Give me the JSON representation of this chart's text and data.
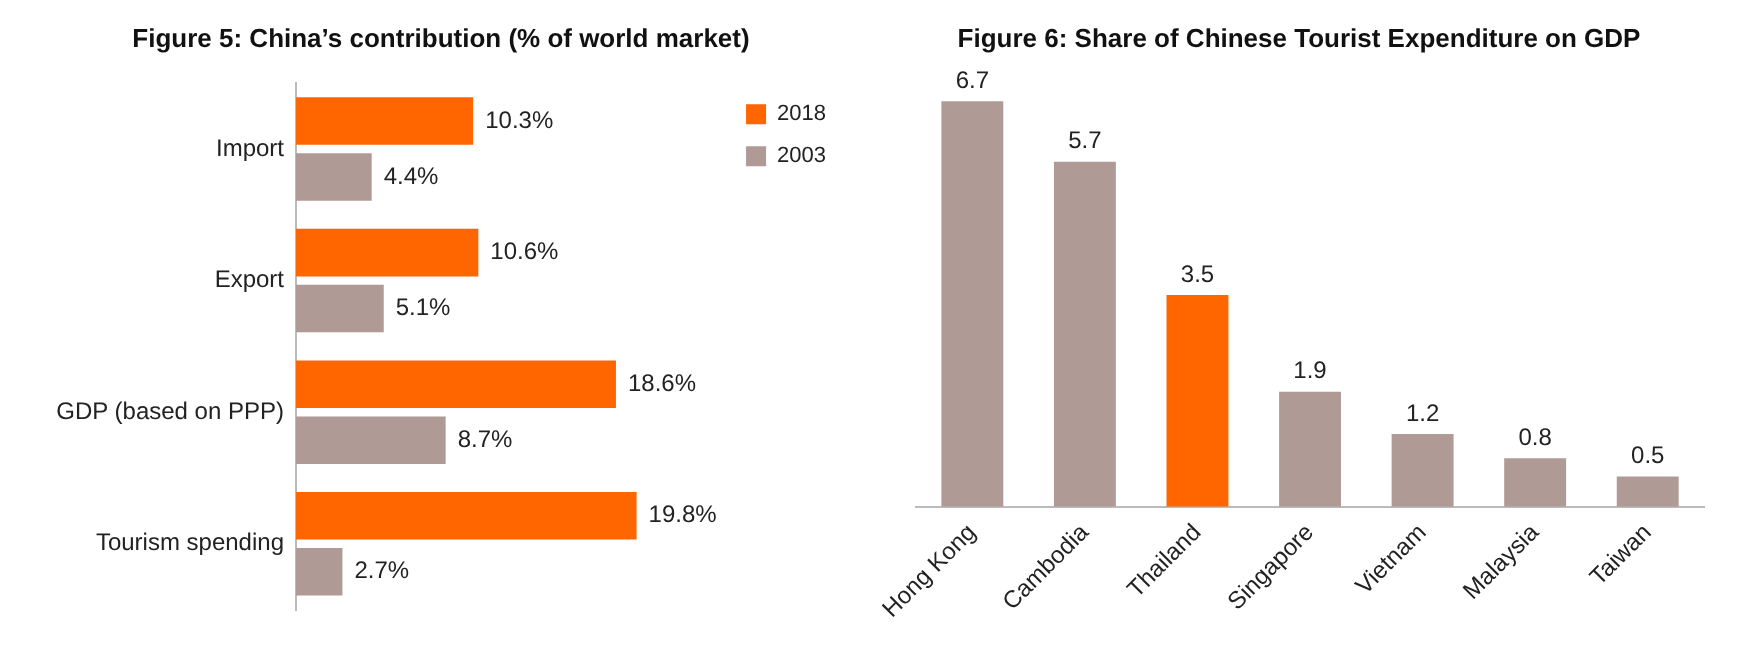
{
  "chart_data": [
    {
      "type": "bar",
      "title": "Figure 5: China’s contribution (% of world market)",
      "orientation": "horizontal",
      "categories": [
        "Import",
        "Export",
        "GDP (based on PPP)",
        "Tourism spending"
      ],
      "series": [
        {
          "name": "2018",
          "color": "#ff6600",
          "values": [
            10.3,
            10.6,
            18.6,
            19.8
          ],
          "value_labels": [
            "10.3%",
            "10.6%",
            "18.6%",
            "19.8%"
          ]
        },
        {
          "name": "2003",
          "color": "#b09a96",
          "values": [
            4.4,
            5.1,
            8.7,
            2.7
          ],
          "value_labels": [
            "4.4%",
            "5.1%",
            "8.7%",
            "2.7%"
          ]
        }
      ],
      "legend": "top right",
      "tick_labels": "y",
      "grid": false
    },
    {
      "type": "bar",
      "title": "Figure 6: Share of Chinese Tourist Expenditure on GDP",
      "categories": [
        "Hong Kong",
        "Cambodia",
        "Thailand",
        "Singapore",
        "Vietnam",
        "Malaysia",
        "Taiwan"
      ],
      "values": [
        6.7,
        5.7,
        3.5,
        1.9,
        1.2,
        0.8,
        0.5
      ],
      "colors": [
        "#b09a96",
        "#b09a96",
        "#ff6600",
        "#b09a96",
        "#b09a96",
        "#b09a96",
        "#b09a96"
      ],
      "data_labels": true,
      "tick_labels": "x",
      "grid": false
    }
  ]
}
